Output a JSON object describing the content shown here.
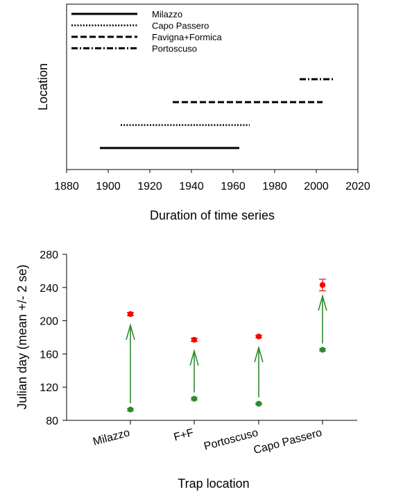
{
  "chart_data": [
    {
      "type": "timeline",
      "xlabel": "Duration of time series",
      "ylabel": "Location",
      "xlim": [
        1880,
        2020
      ],
      "xticks": [
        1880,
        1900,
        1920,
        1940,
        1960,
        1980,
        2000,
        2020
      ],
      "legend_position": "top-left",
      "series": [
        {
          "name": "Milazzo",
          "style": "solid",
          "start": 1896,
          "end": 1963,
          "row": 1
        },
        {
          "name": "Capo Passero",
          "style": "dotted",
          "start": 1906,
          "end": 1968,
          "row": 2
        },
        {
          "name": "Favigna+Formica",
          "style": "dashed",
          "start": 1931,
          "end": 2003,
          "row": 3
        },
        {
          "name": "Portoscuso",
          "style": "dash-dot",
          "start": 1992,
          "end": 2009,
          "row": 4
        }
      ]
    },
    {
      "type": "scatter",
      "xlabel": "Trap location",
      "ylabel": "Julian day (mean +/- 2 se)",
      "ylim": [
        80,
        280
      ],
      "yticks": [
        80,
        120,
        160,
        200,
        240,
        280
      ],
      "categories": [
        "Milazzo",
        "F+F",
        "Portoscuso",
        "Capo Passero"
      ],
      "series": [
        {
          "color": "#2e8b2e",
          "values": [
            93,
            106,
            100,
            165
          ],
          "errors": [
            1.5,
            1.5,
            1,
            1.5
          ]
        },
        {
          "color": "#ff0000",
          "values": [
            208,
            177,
            181,
            243
          ],
          "errors": [
            2,
            2,
            1.5,
            7
          ]
        }
      ],
      "arrow_color": "#2e8b2e"
    }
  ]
}
